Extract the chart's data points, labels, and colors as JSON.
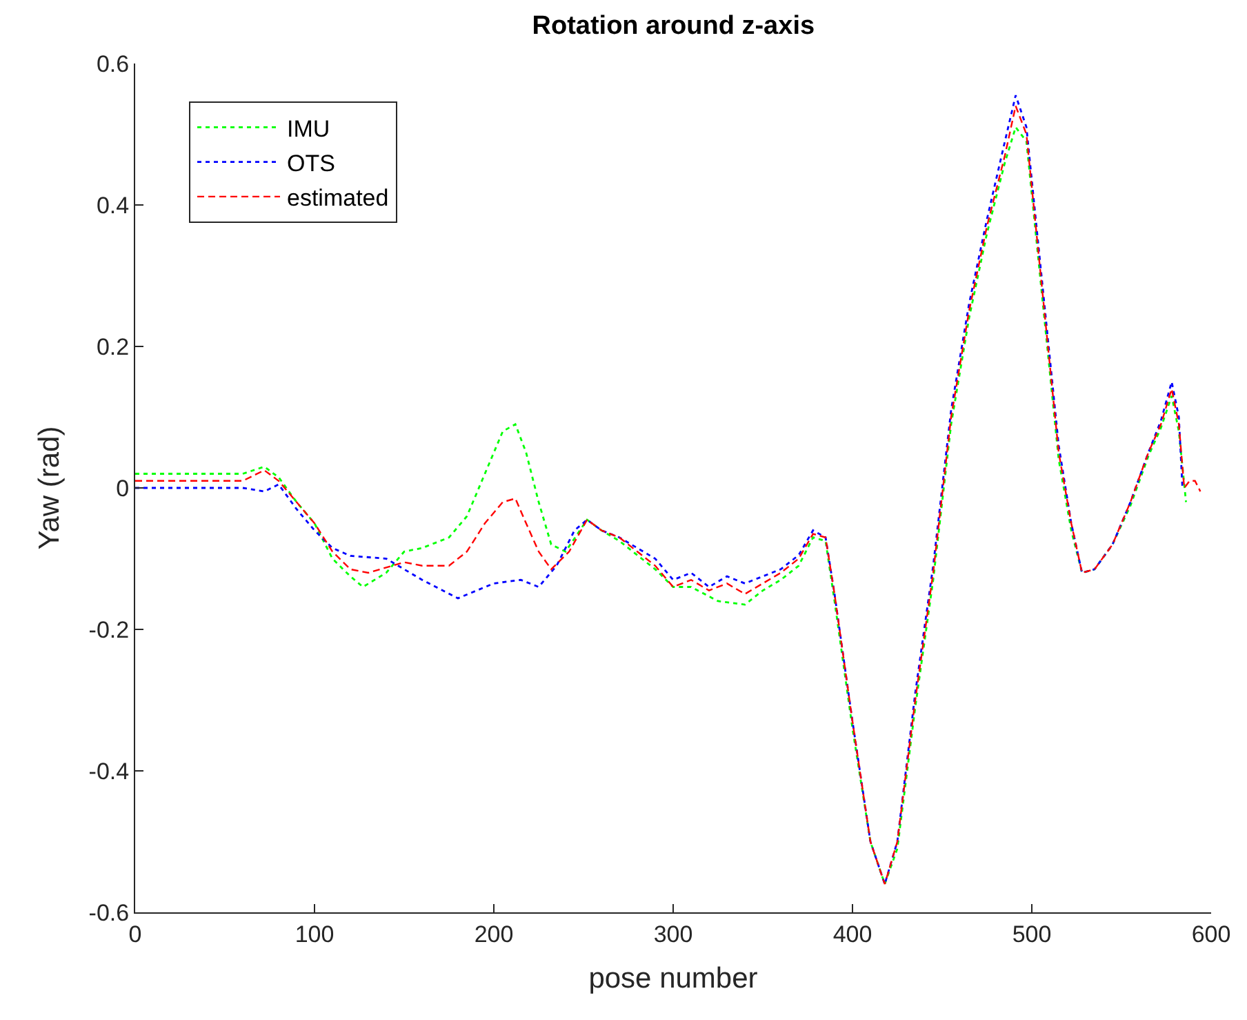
{
  "chart_data": {
    "type": "line",
    "title": "Rotation around z-axis",
    "xlabel": "pose number",
    "ylabel": "Yaw (rad)",
    "xlim": [
      0,
      600
    ],
    "xticks": [
      0,
      100,
      200,
      300,
      400,
      500,
      600
    ],
    "ylim": [
      -0.6,
      0.6
    ],
    "yticks": [
      -0.6,
      -0.4,
      -0.2,
      0,
      0.2,
      0.4,
      0.6
    ],
    "legend": "top left",
    "marker": "none",
    "series": [
      {
        "name": "IMU",
        "color": "#00ff00",
        "line_style": "dotted",
        "x": [
          0,
          30,
          60,
          72,
          80,
          90,
          100,
          110,
          120,
          127,
          140,
          150,
          160,
          175,
          185,
          195,
          205,
          212,
          218,
          225,
          232,
          240,
          252,
          260,
          270,
          280,
          290,
          300,
          310,
          325,
          340,
          350,
          360,
          370,
          378,
          385,
          390,
          400,
          410,
          418,
          425,
          435,
          445,
          455,
          465,
          475,
          485,
          491,
          497,
          505,
          515,
          522,
          528,
          535,
          545,
          555,
          565,
          572,
          578,
          582,
          586
        ],
        "values": [
          0.02,
          0.02,
          0.02,
          0.03,
          0.015,
          -0.02,
          -0.05,
          -0.1,
          -0.125,
          -0.14,
          -0.12,
          -0.09,
          -0.085,
          -0.07,
          -0.04,
          0.02,
          0.08,
          0.09,
          0.05,
          -0.02,
          -0.08,
          -0.09,
          -0.045,
          -0.06,
          -0.075,
          -0.095,
          -0.115,
          -0.14,
          -0.14,
          -0.16,
          -0.165,
          -0.145,
          -0.13,
          -0.11,
          -0.07,
          -0.075,
          -0.16,
          -0.34,
          -0.5,
          -0.56,
          -0.51,
          -0.31,
          -0.13,
          0.09,
          0.24,
          0.36,
          0.46,
          0.51,
          0.49,
          0.29,
          0.04,
          -0.06,
          -0.12,
          -0.115,
          -0.08,
          -0.025,
          0.045,
          0.085,
          0.13,
          0.08,
          -0.02
        ]
      },
      {
        "name": "OTS",
        "color": "#0000ff",
        "line_style": "dotted",
        "x": [
          0,
          30,
          60,
          72,
          80,
          90,
          100,
          110,
          120,
          140,
          160,
          180,
          200,
          215,
          225,
          235,
          245,
          252,
          260,
          270,
          280,
          290,
          300,
          310,
          320,
          330,
          340,
          350,
          360,
          370,
          378,
          385,
          390,
          400,
          410,
          418,
          425,
          435,
          445,
          455,
          465,
          475,
          485,
          491,
          497,
          505,
          515,
          522,
          528,
          535,
          545,
          555,
          565,
          572,
          578,
          582,
          584
        ],
        "values": [
          0,
          0,
          0,
          -0.005,
          0.005,
          -0.03,
          -0.06,
          -0.085,
          -0.096,
          -0.1,
          -0.13,
          -0.156,
          -0.135,
          -0.13,
          -0.14,
          -0.11,
          -0.06,
          -0.045,
          -0.06,
          -0.07,
          -0.085,
          -0.1,
          -0.13,
          -0.12,
          -0.14,
          -0.125,
          -0.135,
          -0.125,
          -0.115,
          -0.095,
          -0.06,
          -0.07,
          -0.15,
          -0.33,
          -0.5,
          -0.56,
          -0.5,
          -0.29,
          -0.11,
          0.11,
          0.26,
          0.38,
          0.49,
          0.555,
          0.51,
          0.31,
          0.06,
          -0.05,
          -0.12,
          -0.115,
          -0.08,
          -0.02,
          0.05,
          0.095,
          0.15,
          0.1,
          0.0
        ]
      },
      {
        "name": "estimated",
        "color": "#ff0000",
        "line_style": "dashed",
        "x": [
          0,
          30,
          60,
          72,
          80,
          90,
          100,
          110,
          120,
          130,
          150,
          160,
          175,
          185,
          195,
          205,
          212,
          218,
          225,
          232,
          242,
          252,
          260,
          270,
          280,
          290,
          300,
          310,
          320,
          330,
          340,
          350,
          360,
          370,
          378,
          385,
          390,
          400,
          410,
          418,
          425,
          435,
          445,
          455,
          465,
          475,
          485,
          491,
          497,
          505,
          515,
          522,
          528,
          535,
          545,
          555,
          565,
          572,
          578,
          582,
          585,
          588,
          591,
          594
        ],
        "values": [
          0.01,
          0.01,
          0.01,
          0.025,
          0.01,
          -0.02,
          -0.05,
          -0.09,
          -0.115,
          -0.12,
          -0.105,
          -0.11,
          -0.11,
          -0.09,
          -0.05,
          -0.02,
          -0.015,
          -0.05,
          -0.09,
          -0.115,
          -0.09,
          -0.045,
          -0.06,
          -0.07,
          -0.09,
          -0.11,
          -0.14,
          -0.13,
          -0.145,
          -0.135,
          -0.15,
          -0.135,
          -0.12,
          -0.1,
          -0.065,
          -0.07,
          -0.15,
          -0.33,
          -0.5,
          -0.56,
          -0.5,
          -0.3,
          -0.12,
          0.1,
          0.25,
          0.37,
          0.47,
          0.54,
          0.5,
          0.3,
          0.05,
          -0.05,
          -0.12,
          -0.115,
          -0.08,
          -0.02,
          0.05,
          0.09,
          0.14,
          0.09,
          0.0,
          0.01,
          0.01,
          -0.005
        ]
      }
    ]
  }
}
